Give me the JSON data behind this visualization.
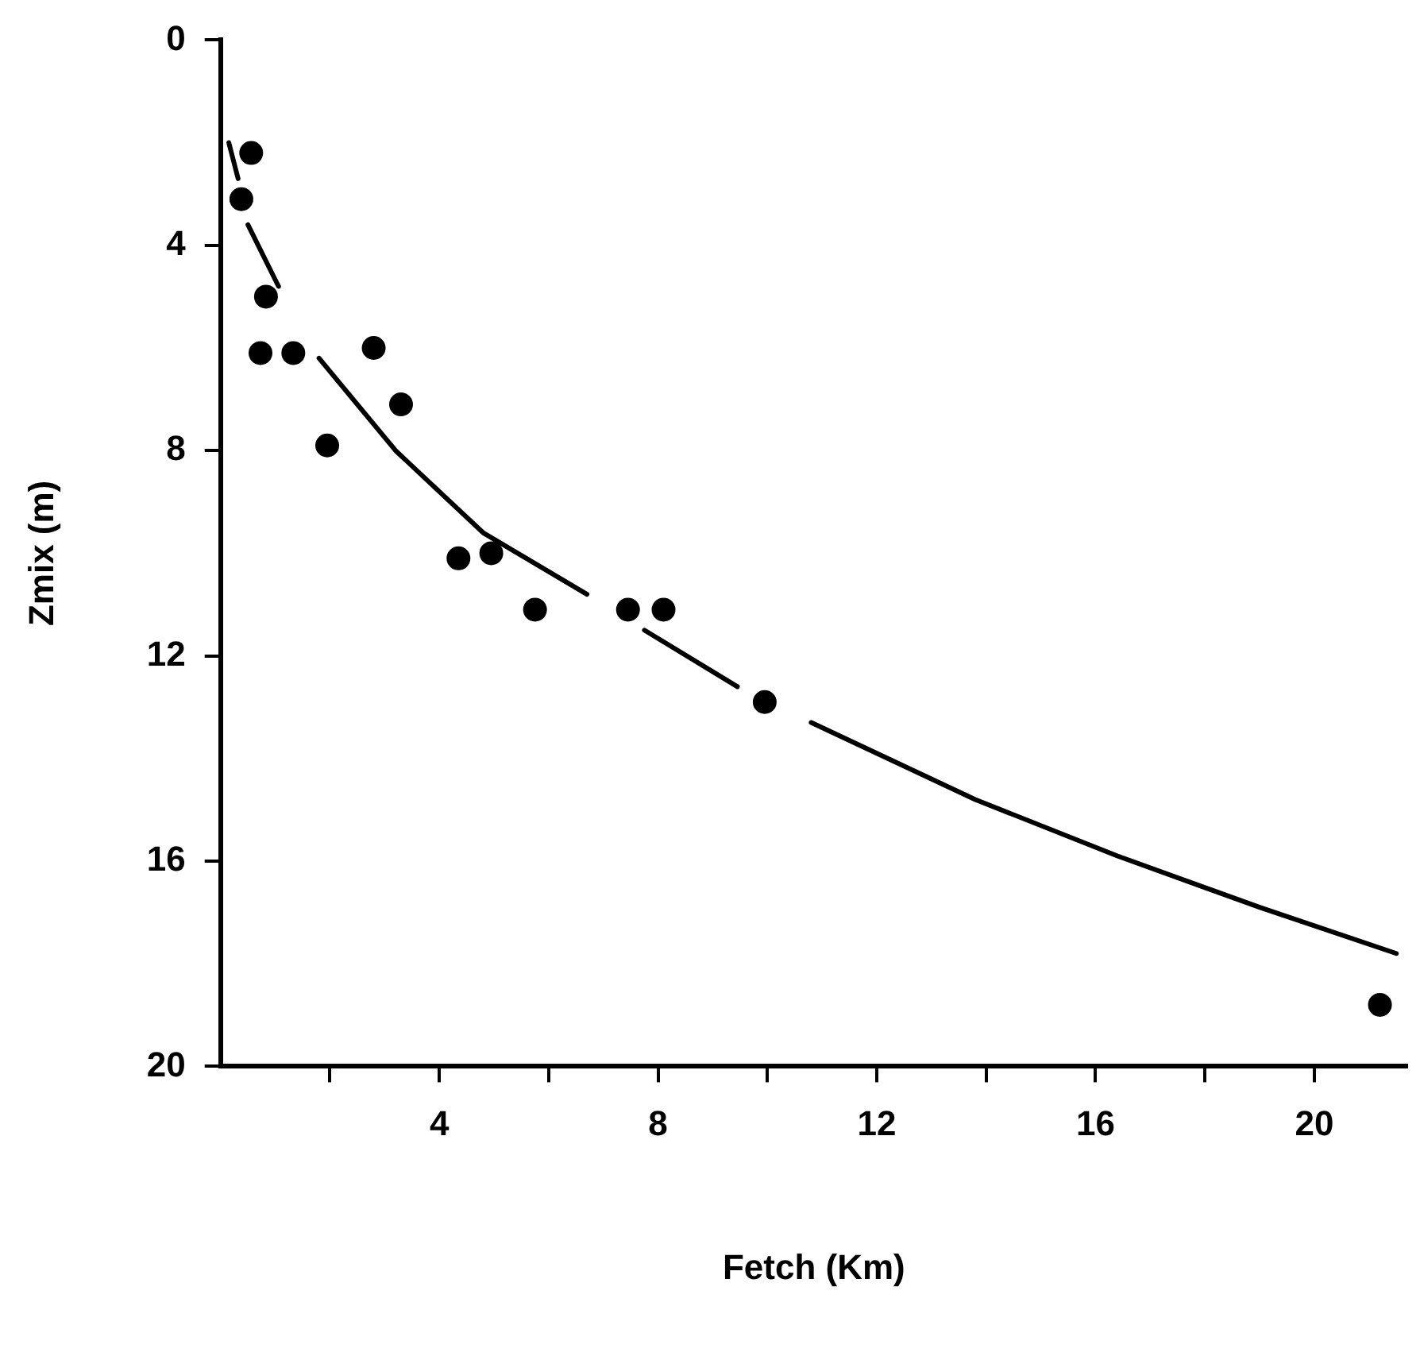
{
  "chart_data": {
    "type": "scatter",
    "xlabel": "Fetch (Km)",
    "ylabel": "Zmix (m)",
    "xlim": [
      0,
      21.7
    ],
    "xticks": [
      {
        "value": 2,
        "label": null
      },
      4,
      {
        "value": 6,
        "label": null
      },
      8,
      {
        "value": 10,
        "label": null
      },
      12,
      {
        "value": 14,
        "label": null
      },
      16,
      {
        "value": 18,
        "label": null
      },
      20
    ],
    "ylim": [
      20,
      0
    ],
    "yticks": [
      0,
      4,
      8,
      12,
      16,
      20
    ],
    "grid": false,
    "legend": false,
    "marker": "circle",
    "series": [
      {
        "color": "#000000",
        "x": [
          0.56,
          0.38,
          0.83,
          0.73,
          1.33,
          2.8,
          3.3,
          1.95,
          4.35,
          4.95,
          5.75,
          7.45,
          8.1,
          9.95,
          21.2
        ],
        "values": [
          2.2,
          3.1,
          5.0,
          6.1,
          6.1,
          6.0,
          7.1,
          7.9,
          10.1,
          10.0,
          11.1,
          11.1,
          11.1,
          12.9,
          18.8
        ]
      },
      {
        "type": "line",
        "color": "#000000",
        "marker": "none",
        "line_style": "solid",
        "x": [
          0.15,
          0.32,
          0.41,
          0.5,
          1.06,
          1.4,
          1.8,
          3.2,
          4.8,
          6.7,
          7.2,
          7.75,
          9.45,
          10.1,
          10.8,
          13.8,
          16.4,
          19.0,
          21.5
        ],
        "values": [
          2.0,
          2.7,
          null,
          3.6,
          4.8,
          null,
          6.2,
          8.0,
          9.6,
          10.8,
          null,
          11.5,
          12.6,
          null,
          13.3,
          14.8,
          15.9,
          16.9,
          17.8
        ]
      }
    ]
  }
}
